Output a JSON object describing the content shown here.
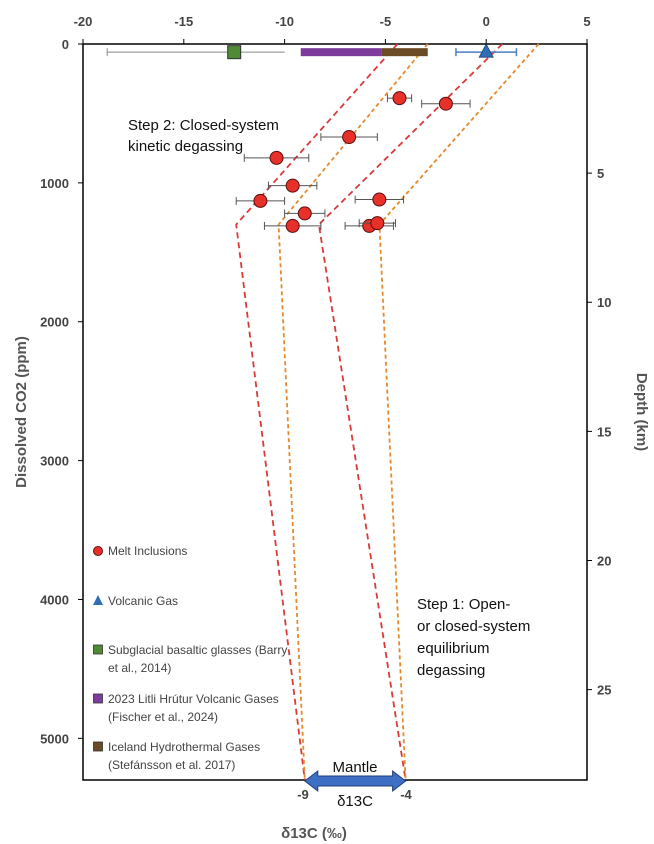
{
  "chart_data": {
    "type": "scatter",
    "title": "",
    "xlabel": "δ13C (‰)",
    "ylabel": "Dissolved CO2 (ppm)",
    "y2label": "Depth (km)",
    "xlim": [
      -20,
      5
    ],
    "ylim": [
      0,
      5300
    ],
    "y2lim": [
      0,
      28.5
    ],
    "x_ticks": [
      -20,
      -15,
      -10,
      -5,
      0,
      5
    ],
    "y_ticks": [
      0,
      1000,
      2000,
      3000,
      4000,
      5000
    ],
    "y2_ticks": [
      5,
      10,
      15,
      20,
      25
    ],
    "x_axis_position": "top",
    "y_axis_inverted": true,
    "grid": false,
    "legend_position": "bottom-left",
    "colors": {
      "melt": "#e8302b",
      "volcanic_gas": "#2e6fb8",
      "glass": "#4f8a35",
      "litli": "#7d3c9c",
      "hydro": "#6b4a26",
      "kinetic_line": "#d93a3a",
      "equilibrium_line": "#e58a2e",
      "mantle_arrow": "#3f6fc4"
    },
    "series": [
      {
        "name": "Melt Inclusions",
        "marker": "circle",
        "points": [
          {
            "x": -4.3,
            "y": 390,
            "xerr": 0.6
          },
          {
            "x": -2.0,
            "y": 430,
            "xerr": 1.2
          },
          {
            "x": -6.8,
            "y": 670,
            "xerr": 1.4
          },
          {
            "x": -10.4,
            "y": 820,
            "xerr": 1.6
          },
          {
            "x": -9.6,
            "y": 1020,
            "xerr": 1.2
          },
          {
            "x": -11.2,
            "y": 1130,
            "xerr": 1.2
          },
          {
            "x": -5.3,
            "y": 1120,
            "xerr": 1.2
          },
          {
            "x": -9.0,
            "y": 1220,
            "xerr": 1.0
          },
          {
            "x": -9.6,
            "y": 1310,
            "xerr": 1.4
          },
          {
            "x": -5.8,
            "y": 1310,
            "xerr": 1.2
          },
          {
            "x": -5.4,
            "y": 1290,
            "xerr": 0.9
          }
        ]
      },
      {
        "name": "Volcanic Gas",
        "marker": "triangle",
        "points": [
          {
            "x": 0.0,
            "y": 30,
            "xerr": 1.5
          }
        ]
      },
      {
        "name": "Subglacial basaltic glasses (Barry et al., 2014)",
        "marker": "square",
        "points": [
          {
            "x": -12.5,
            "y": 30,
            "xmin": -18.8,
            "xmax": -10.0
          }
        ]
      },
      {
        "name": "2023 Litli Hrútur Volcanic Gases (Fischer et al., 2024)",
        "marker": "range-bar",
        "range": [
          -9.2,
          -5.2
        ],
        "y": 30
      },
      {
        "name": "Iceland Hydrothermal Gases (Stefánsson et al. 2017)",
        "marker": "range-bar",
        "range": [
          -5.2,
          -2.9
        ],
        "y": 30
      }
    ],
    "model_lines": [
      {
        "kind": "kinetic",
        "points": [
          [
            -4.4,
            0
          ],
          [
            -12.4,
            1300
          ],
          [
            -9.0,
            5300
          ]
        ]
      },
      {
        "kind": "equilibrium",
        "points": [
          [
            -2.9,
            0
          ],
          [
            -10.3,
            1300
          ],
          [
            -9.0,
            5300
          ]
        ]
      },
      {
        "kind": "kinetic",
        "points": [
          [
            0.8,
            0
          ],
          [
            -8.3,
            1300
          ],
          [
            -4.0,
            5300
          ]
        ]
      },
      {
        "kind": "equilibrium",
        "points": [
          [
            2.6,
            0
          ],
          [
            -5.3,
            1300
          ],
          [
            -4.0,
            5300
          ]
        ]
      }
    ],
    "annotations": {
      "step2_line1": "Step 2: Closed-system",
      "step2_line2": "kinetic degassing",
      "step1_line1": "Step 1: Open-",
      "step1_line2": "or closed-system",
      "step1_line3": "equilibrium",
      "step1_line4": "degassing"
    },
    "mantle": {
      "label": "Mantle",
      "range": [
        -9,
        -4
      ],
      "range_labels": [
        "-9",
        "-4"
      ],
      "symbol": "δ13C"
    }
  }
}
